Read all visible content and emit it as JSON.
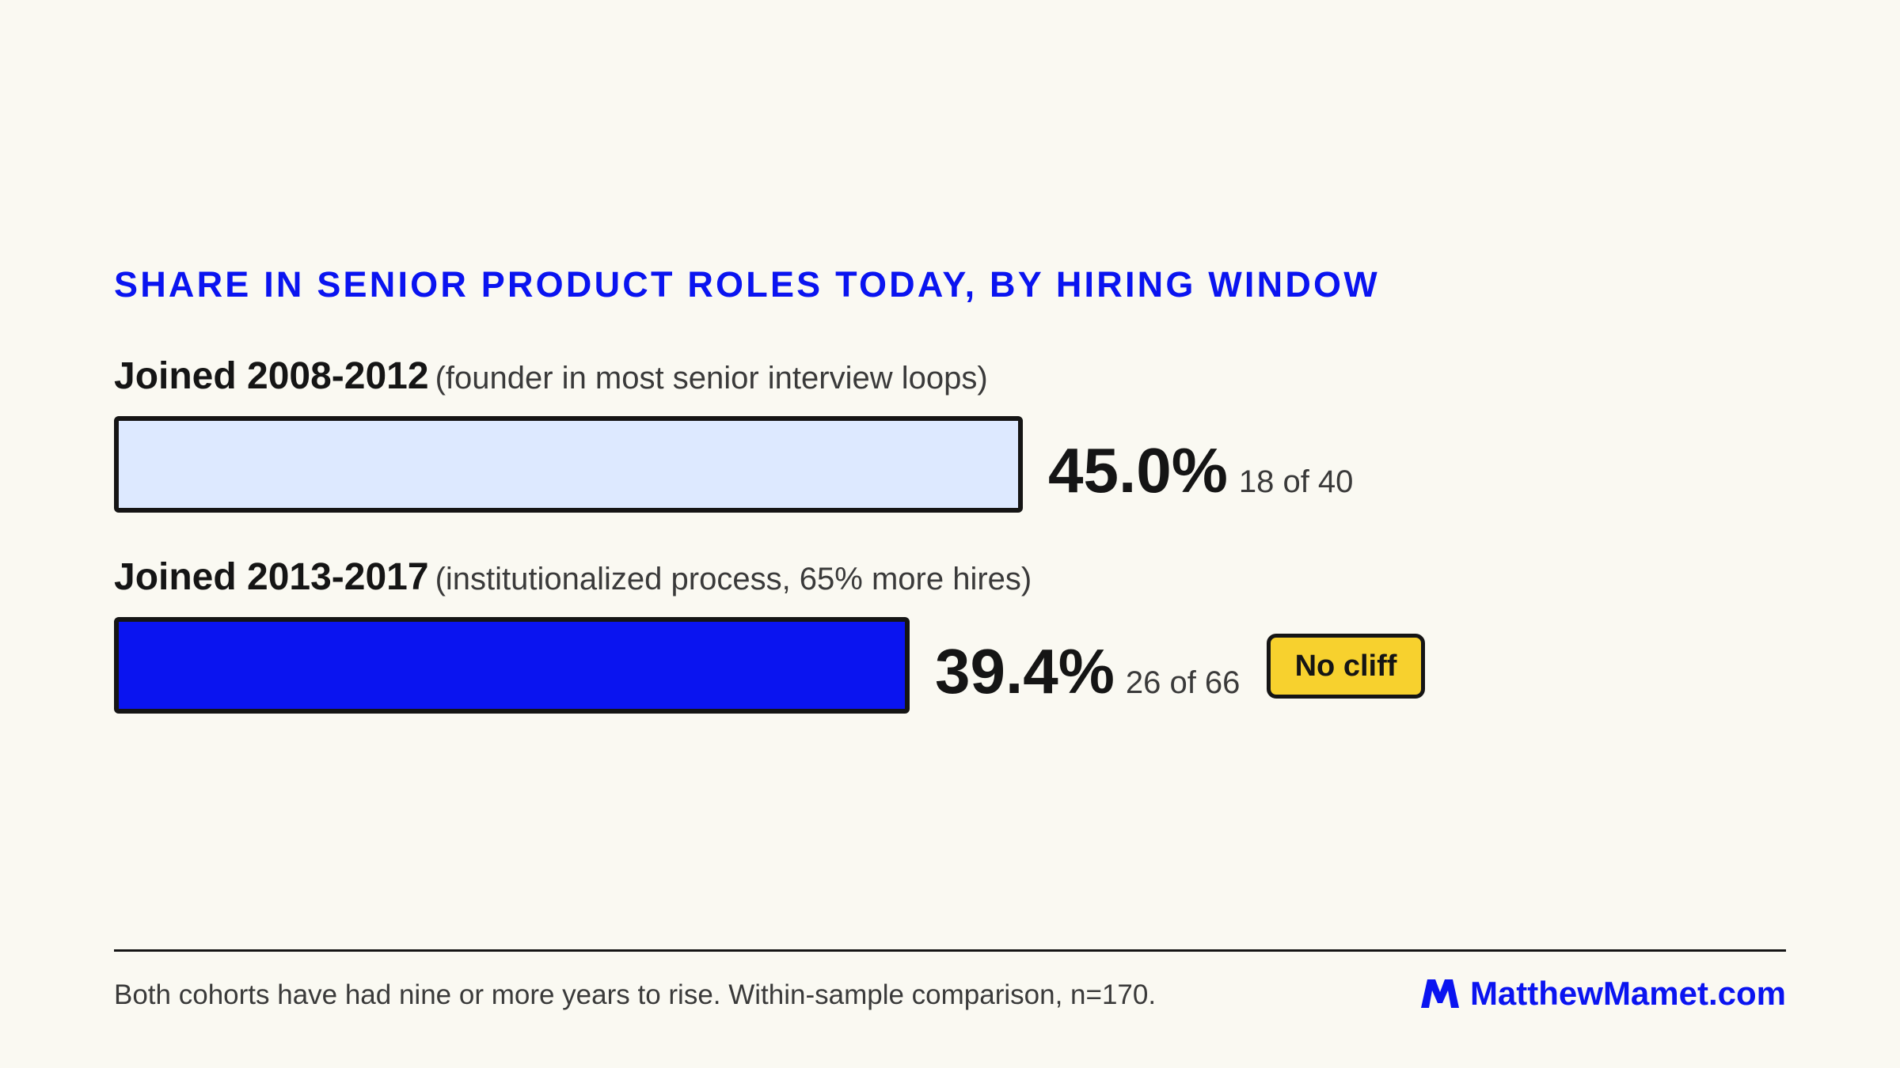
{
  "chart_data": {
    "type": "bar",
    "orientation": "horizontal",
    "title": "SHARE IN SENIOR PRODUCT ROLES TODAY, BY HIRING WINDOW",
    "categories": [
      "Joined 2008-2012",
      "Joined 2013-2017"
    ],
    "category_notes": [
      "(founder in most senior interview loops)",
      "(institutionalized process, 65% more hires)"
    ],
    "values": [
      45.0,
      39.4
    ],
    "value_labels": [
      "45.0%",
      "39.4%"
    ],
    "count_labels": [
      "18 of 40",
      "26 of 66"
    ],
    "bar_colors": [
      "#dde9ff",
      "#0a14f0"
    ],
    "xlim": [
      0,
      56
    ],
    "badge": "No cliff"
  },
  "footer": {
    "note": "Both cohorts have had nine or more years to rise. Within-sample comparison, n=170.",
    "brand": "MatthewMamet.com",
    "brand_icon": "m-logo-icon"
  },
  "colors": {
    "accent": "#0a14f0",
    "background": "#faf9f2",
    "badge": "#f7d12e",
    "text": "#151515"
  }
}
